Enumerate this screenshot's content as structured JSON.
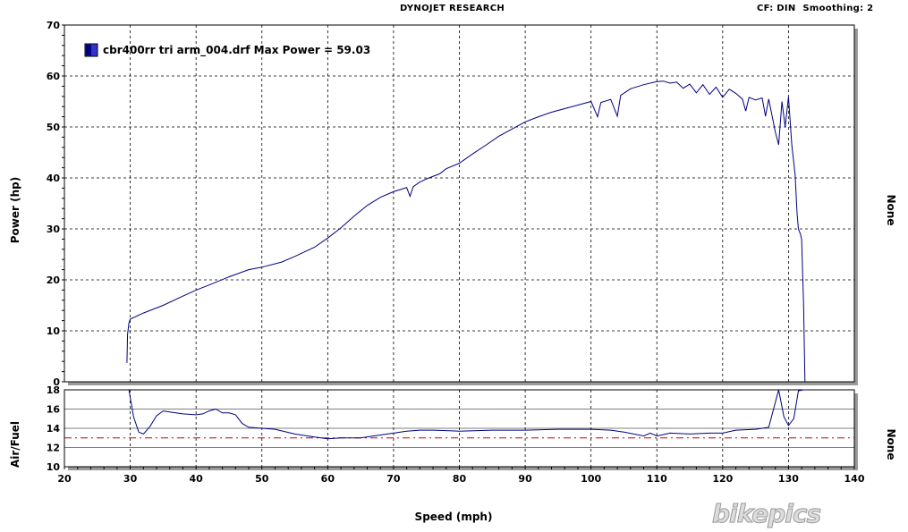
{
  "header": {
    "title": "DYNOJET RESEARCH",
    "cf": "CF: DIN",
    "smoothing": "Smoothing: 2"
  },
  "watermark": "bikepics",
  "colors": {
    "series": "#000080",
    "legend_swatch": "#3333cc",
    "reference_line": "#cc0000",
    "frame_shadow": "#9a9a9a",
    "grid": "#000000"
  },
  "chart_data": [
    {
      "type": "line",
      "ylabel": "Power (hp)",
      "y2label": "None",
      "xlim": [
        20,
        140
      ],
      "ylim": [
        0,
        70
      ],
      "xticks": [
        20,
        30,
        40,
        50,
        60,
        70,
        80,
        90,
        100,
        110,
        120,
        130,
        140
      ],
      "yticks": [
        0,
        10,
        20,
        30,
        40,
        50,
        60,
        70
      ],
      "grid": true,
      "legend": {
        "position": "top-left",
        "label": "cbr400rr tri arm_004.drf Max Power = 59.03"
      },
      "series": [
        {
          "name": "cbr400rr tri arm_004.drf",
          "x": [
            29.5,
            29.6,
            29.8,
            30,
            32,
            35,
            38,
            40,
            42,
            45,
            48,
            50,
            53,
            55,
            58,
            60,
            62,
            64,
            66,
            68,
            70,
            72,
            72.5,
            73,
            74,
            75,
            77,
            78,
            80,
            82,
            84,
            86,
            88,
            90,
            92,
            94,
            96,
            98,
            100,
            101,
            101.5,
            103,
            104,
            104.5,
            106,
            108,
            110,
            111,
            112,
            113,
            114,
            115,
            116,
            117,
            118,
            119,
            120,
            121,
            122,
            123,
            123.5,
            124,
            125,
            126,
            126.5,
            127,
            128,
            128.5,
            129,
            129.5,
            130,
            130.5,
            131,
            131.3,
            131.5,
            131.8,
            132,
            132.3,
            132.5
          ],
          "values": [
            3.7,
            9.3,
            11.5,
            12.3,
            13.5,
            15.0,
            16.8,
            18.0,
            19.0,
            20.6,
            22.0,
            22.5,
            23.5,
            24.6,
            26.4,
            28.2,
            30.2,
            32.5,
            34.6,
            36.2,
            37.3,
            38.1,
            36.4,
            38.3,
            39.2,
            39.8,
            40.8,
            41.8,
            42.9,
            44.7,
            46.4,
            48.2,
            49.6,
            51.0,
            52.0,
            52.9,
            53.6,
            54.3,
            55.0,
            52.0,
            54.8,
            55.4,
            52.1,
            56.2,
            57.5,
            58.3,
            58.9,
            59.0,
            58.6,
            58.8,
            57.6,
            58.4,
            56.7,
            58.3,
            56.4,
            57.8,
            55.8,
            57.4,
            56.6,
            55.5,
            53.1,
            55.8,
            55.3,
            55.7,
            52.1,
            55.5,
            49.0,
            46.5,
            55.0,
            50.0,
            55.9,
            46.5,
            40.7,
            33.0,
            30.0,
            29.0,
            28.0,
            15.0,
            0.0
          ]
        }
      ]
    },
    {
      "type": "line",
      "ylabel": "Air/Fuel",
      "y2label": "None",
      "xlabel": "Speed (mph)",
      "xlim": [
        20,
        140
      ],
      "ylim": [
        10,
        18
      ],
      "xticks": [
        20,
        30,
        40,
        50,
        60,
        70,
        80,
        90,
        100,
        110,
        120,
        130,
        140
      ],
      "xticklabels": [
        "20",
        "30",
        "40",
        "50",
        "60",
        "70",
        "80",
        "90",
        "100",
        "110",
        "120",
        "130",
        "140"
      ],
      "yticks": [
        10,
        12,
        14,
        16,
        18
      ],
      "grid": true,
      "reference_line": 13.0,
      "series": [
        {
          "name": "cbr400rr tri arm_004.drf",
          "x": [
            29.8,
            30.5,
            31.3,
            32,
            33,
            34,
            35,
            36,
            38,
            40,
            41,
            42,
            43,
            44,
            45,
            46,
            47,
            48,
            50,
            52,
            55,
            58,
            60,
            62,
            65,
            68,
            70,
            72,
            74,
            76,
            80,
            85,
            90,
            95,
            100,
            103,
            105,
            108,
            109,
            110,
            112,
            115,
            118,
            120,
            122,
            125,
            127,
            128.5,
            129.3,
            130,
            130.8,
            131.5,
            132.3,
            132.8
          ],
          "values": [
            18.0,
            15.2,
            13.6,
            13.4,
            14.2,
            15.3,
            15.8,
            15.7,
            15.5,
            15.4,
            15.5,
            15.8,
            16.0,
            15.6,
            15.6,
            15.4,
            14.5,
            14.1,
            14.0,
            13.9,
            13.4,
            13.1,
            12.9,
            13.0,
            13.0,
            13.3,
            13.5,
            13.7,
            13.8,
            13.8,
            13.7,
            13.8,
            13.8,
            13.9,
            13.9,
            13.8,
            13.6,
            13.2,
            13.5,
            13.2,
            13.5,
            13.4,
            13.5,
            13.5,
            13.8,
            13.9,
            14.1,
            18.0,
            15.2,
            14.3,
            15.0,
            17.9,
            18.0,
            18.0
          ]
        }
      ]
    }
  ]
}
